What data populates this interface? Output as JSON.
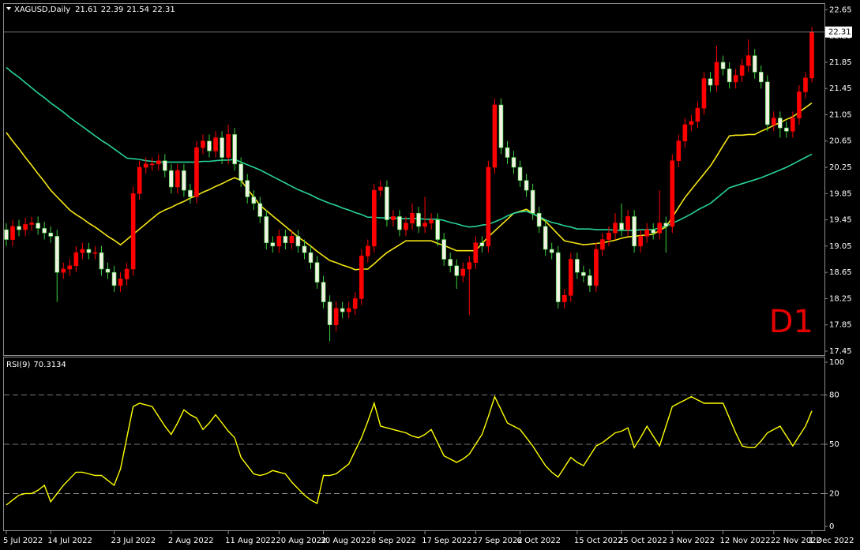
{
  "chart_data": [
    {
      "type": "candlestick",
      "title": "XAGUSD,Daily",
      "annotation": "D1",
      "categories": [
        "5 Jul 2022",
        null,
        null,
        null,
        null,
        null,
        null,
        "14 Jul 2022",
        null,
        null,
        null,
        null,
        null,
        null,
        null,
        null,
        null,
        "23 Jul 2022",
        null,
        null,
        null,
        null,
        null,
        null,
        null,
        null,
        "2 Aug 2022",
        null,
        null,
        null,
        null,
        null,
        null,
        null,
        null,
        "11 Aug 2022",
        null,
        null,
        null,
        null,
        null,
        null,
        null,
        "20 Aug 2022",
        null,
        null,
        null,
        null,
        null,
        null,
        "30 Aug 2022",
        null,
        null,
        null,
        null,
        null,
        null,
        null,
        "8 Sep 2022",
        null,
        null,
        null,
        null,
        null,
        null,
        null,
        "17 Sep 2022",
        null,
        null,
        null,
        null,
        null,
        null,
        null,
        "27 Sep 2022",
        null,
        null,
        null,
        null,
        null,
        null,
        "6 Oct 2022",
        null,
        null,
        null,
        null,
        null,
        null,
        null,
        null,
        "15 Oct 2022",
        null,
        null,
        null,
        null,
        null,
        null,
        "25 Oct 2022",
        null,
        null,
        null,
        null,
        null,
        null,
        null,
        "3 Nov 2022",
        null,
        null,
        null,
        null,
        null,
        null,
        null,
        "12 Nov 2022",
        null,
        null,
        null,
        null,
        null,
        null,
        null,
        "22 Nov 2022",
        null,
        null,
        null,
        null,
        null,
        "1 Dec 2022"
      ],
      "open": [
        19.3,
        19.15,
        19.35,
        19.3,
        19.38,
        19.4,
        19.32,
        19.25,
        19.2,
        18.65,
        18.7,
        18.75,
        18.95,
        19.0,
        18.95,
        18.95,
        18.7,
        18.65,
        18.45,
        18.55,
        18.7,
        19.85,
        20.25,
        20.3,
        20.3,
        20.35,
        20.2,
        19.95,
        20.2,
        19.9,
        19.8,
        20.55,
        20.65,
        20.5,
        20.7,
        20.4,
        20.75,
        20.3,
        20.05,
        19.8,
        19.7,
        19.5,
        19.1,
        19.05,
        19.2,
        19.1,
        19.2,
        19.05,
        18.95,
        18.8,
        18.5,
        18.2,
        17.85,
        18.1,
        18.05,
        18.1,
        18.25,
        18.9,
        19.05,
        19.9,
        19.95,
        19.45,
        19.5,
        19.3,
        19.4,
        19.55,
        19.35,
        19.4,
        19.45,
        19.15,
        18.85,
        18.75,
        18.6,
        18.7,
        18.8,
        19.1,
        19.05,
        20.25,
        21.2,
        20.55,
        20.4,
        20.25,
        20.05,
        19.9,
        19.55,
        19.35,
        19.0,
        18.95,
        18.2,
        18.3,
        18.85,
        18.65,
        18.6,
        18.45,
        19.0,
        19.15,
        19.25,
        19.4,
        19.3,
        19.5,
        19.05,
        19.2,
        19.3,
        19.25,
        19.4,
        19.35,
        20.35,
        20.65,
        20.9,
        20.95,
        21.15,
        21.6,
        21.5,
        21.85,
        21.75,
        21.55,
        21.65,
        21.8,
        21.95,
        21.7,
        21.55,
        20.9,
        21.0,
        20.85,
        20.8,
        21.0,
        21.4,
        21.61
      ],
      "high": [
        19.4,
        19.45,
        19.45,
        19.48,
        19.5,
        19.5,
        19.42,
        19.35,
        19.3,
        18.8,
        18.85,
        19.05,
        19.1,
        19.1,
        19.05,
        19.05,
        18.8,
        18.75,
        18.65,
        18.8,
        19.95,
        20.35,
        20.4,
        20.4,
        20.45,
        20.45,
        20.3,
        20.3,
        20.3,
        20.0,
        20.65,
        20.75,
        20.75,
        20.8,
        20.8,
        20.9,
        20.85,
        20.4,
        20.15,
        19.9,
        19.8,
        19.6,
        19.2,
        19.3,
        19.3,
        19.3,
        19.3,
        19.15,
        19.05,
        18.9,
        18.6,
        18.3,
        18.2,
        18.2,
        18.2,
        18.35,
        19.0,
        19.15,
        20.0,
        20.05,
        20.05,
        19.6,
        19.6,
        19.5,
        19.7,
        19.65,
        19.8,
        19.55,
        19.55,
        19.25,
        18.95,
        18.85,
        18.8,
        18.9,
        19.2,
        19.2,
        20.35,
        21.3,
        21.3,
        20.65,
        20.5,
        20.35,
        20.15,
        20.0,
        19.65,
        19.45,
        19.1,
        19.05,
        18.4,
        18.95,
        18.95,
        18.75,
        18.7,
        19.1,
        19.25,
        19.35,
        19.55,
        19.7,
        19.6,
        19.6,
        19.3,
        19.4,
        19.4,
        19.9,
        19.5,
        20.45,
        20.75,
        21.0,
        21.05,
        21.25,
        21.7,
        21.7,
        22.1,
        21.95,
        21.85,
        21.75,
        21.9,
        22.2,
        22.05,
        21.8,
        21.65,
        21.1,
        21.1,
        20.95,
        21.1,
        21.5,
        21.7,
        22.39
      ],
      "low": [
        19.05,
        19.05,
        19.2,
        19.2,
        19.28,
        19.22,
        19.15,
        19.1,
        18.2,
        18.55,
        18.6,
        18.65,
        18.85,
        18.85,
        18.85,
        18.6,
        18.55,
        18.35,
        18.35,
        18.45,
        18.6,
        19.75,
        20.15,
        20.2,
        20.2,
        20.1,
        19.85,
        19.85,
        19.8,
        19.7,
        19.7,
        20.45,
        20.4,
        20.4,
        20.3,
        20.3,
        20.2,
        19.95,
        19.7,
        19.6,
        19.4,
        19.0,
        18.95,
        18.95,
        19.0,
        19.0,
        18.95,
        18.85,
        18.7,
        18.4,
        18.1,
        17.6,
        17.75,
        17.95,
        17.95,
        18.0,
        18.15,
        18.8,
        18.95,
        19.8,
        19.35,
        19.35,
        19.2,
        19.2,
        19.3,
        19.25,
        19.25,
        19.3,
        19.05,
        18.75,
        18.65,
        18.4,
        18.5,
        18.0,
        18.7,
        18.95,
        18.95,
        20.15,
        20.45,
        20.3,
        20.15,
        19.95,
        19.8,
        19.45,
        19.25,
        18.9,
        18.85,
        18.1,
        18.1,
        18.2,
        18.55,
        18.5,
        18.35,
        18.35,
        18.9,
        19.05,
        19.15,
        19.2,
        19.2,
        18.95,
        18.95,
        19.1,
        19.15,
        19.15,
        18.95,
        19.25,
        20.25,
        20.55,
        20.8,
        20.85,
        21.05,
        21.4,
        21.4,
        21.65,
        21.45,
        21.45,
        21.55,
        21.7,
        21.6,
        21.45,
        20.8,
        20.8,
        20.7,
        20.7,
        20.7,
        20.9,
        21.3,
        21.54
      ],
      "close": [
        19.15,
        19.35,
        19.3,
        19.38,
        19.4,
        19.32,
        19.25,
        19.2,
        18.65,
        18.7,
        18.75,
        18.95,
        19.0,
        18.95,
        18.95,
        18.7,
        18.65,
        18.45,
        18.55,
        18.7,
        19.85,
        20.25,
        20.3,
        20.3,
        20.35,
        20.2,
        19.95,
        20.2,
        19.9,
        19.8,
        20.55,
        20.65,
        20.5,
        20.7,
        20.4,
        20.75,
        20.3,
        20.05,
        19.8,
        19.7,
        19.5,
        19.1,
        19.05,
        19.2,
        19.1,
        19.2,
        19.05,
        18.95,
        18.8,
        18.5,
        18.2,
        17.85,
        18.1,
        18.05,
        18.1,
        18.25,
        18.9,
        19.05,
        19.9,
        19.95,
        19.45,
        19.5,
        19.3,
        19.4,
        19.55,
        19.35,
        19.4,
        19.45,
        19.15,
        18.85,
        18.75,
        18.6,
        18.7,
        18.8,
        19.1,
        19.05,
        20.25,
        21.2,
        20.55,
        20.4,
        20.25,
        20.05,
        19.9,
        19.55,
        19.35,
        19.0,
        18.95,
        18.2,
        18.3,
        18.85,
        18.65,
        18.6,
        18.45,
        19.0,
        19.15,
        19.25,
        19.4,
        19.3,
        19.5,
        19.05,
        19.2,
        19.3,
        19.25,
        19.4,
        19.35,
        20.35,
        20.65,
        20.9,
        20.95,
        21.15,
        21.6,
        21.5,
        21.85,
        21.75,
        21.55,
        21.65,
        21.8,
        21.95,
        21.7,
        21.55,
        20.9,
        21.0,
        20.85,
        20.8,
        21.0,
        21.4,
        21.61,
        22.31
      ],
      "up_color": "#ff0000",
      "down_color": "#f2f2e4",
      "down_wick_color": "#3cd23c",
      "lines": [
        {
          "color": "#f5e614",
          "values": [
            20.78,
            20.65,
            20.53,
            20.4,
            20.28,
            20.15,
            20.03,
            19.9,
            19.8,
            19.7,
            19.6,
            19.53,
            19.47,
            19.4,
            19.34,
            19.27,
            19.2,
            19.14,
            19.07,
            19.15,
            19.23,
            19.31,
            19.39,
            19.47,
            19.55,
            19.6,
            19.64,
            19.69,
            19.73,
            19.78,
            19.82,
            19.87,
            19.91,
            19.96,
            20.0,
            20.05,
            20.09,
            20.05,
            19.92,
            19.8,
            19.67,
            19.59,
            19.51,
            19.43,
            19.35,
            19.27,
            19.19,
            19.12,
            19.05,
            18.97,
            18.9,
            18.83,
            18.8,
            18.76,
            18.73,
            18.69,
            18.7,
            18.7,
            18.78,
            18.87,
            18.95,
            19.01,
            19.07,
            19.13,
            19.13,
            19.13,
            19.13,
            19.13,
            19.09,
            19.06,
            19.02,
            18.98,
            18.98,
            18.98,
            18.98,
            19.09,
            19.19,
            19.28,
            19.37,
            19.46,
            19.55,
            19.58,
            19.61,
            19.55,
            19.49,
            19.43,
            19.33,
            19.23,
            19.13,
            19.11,
            19.09,
            19.07,
            19.08,
            19.09,
            19.1,
            19.12,
            19.14,
            19.17,
            19.19,
            19.2,
            19.21,
            19.22,
            19.23,
            19.29,
            19.34,
            19.49,
            19.64,
            19.79,
            19.91,
            20.03,
            20.15,
            20.27,
            20.42,
            20.58,
            20.73,
            20.74,
            20.74,
            20.75,
            20.75,
            20.8,
            20.84,
            20.89,
            20.93,
            20.98,
            21.02,
            21.09,
            21.16,
            21.23
          ]
        },
        {
          "color": "#28d29b",
          "values": [
            21.77,
            21.69,
            21.62,
            21.54,
            21.46,
            21.38,
            21.31,
            21.23,
            21.16,
            21.09,
            21.01,
            20.94,
            20.87,
            20.8,
            20.73,
            20.66,
            20.6,
            20.53,
            20.46,
            20.39,
            20.38,
            20.37,
            20.35,
            20.34,
            20.33,
            20.33,
            20.33,
            20.33,
            20.33,
            20.33,
            20.33,
            20.34,
            20.34,
            20.35,
            20.36,
            20.36,
            20.37,
            20.33,
            20.29,
            20.25,
            20.21,
            20.16,
            20.11,
            20.06,
            20.01,
            19.96,
            19.91,
            19.87,
            19.83,
            19.78,
            19.74,
            19.7,
            19.67,
            19.63,
            19.6,
            19.56,
            19.53,
            19.49,
            19.49,
            19.48,
            19.48,
            19.48,
            19.47,
            19.47,
            19.47,
            19.47,
            19.46,
            19.46,
            19.46,
            19.44,
            19.41,
            19.39,
            19.36,
            19.34,
            19.35,
            19.37,
            19.38,
            19.42,
            19.46,
            19.51,
            19.55,
            19.57,
            19.58,
            19.54,
            19.5,
            19.45,
            19.41,
            19.39,
            19.36,
            19.34,
            19.31,
            19.31,
            19.31,
            19.3,
            19.3,
            19.3,
            19.29,
            19.29,
            19.29,
            19.29,
            19.3,
            19.3,
            19.3,
            19.33,
            19.35,
            19.4,
            19.44,
            19.49,
            19.54,
            19.6,
            19.65,
            19.7,
            19.78,
            19.86,
            19.94,
            19.97,
            20.0,
            20.03,
            20.06,
            20.09,
            20.13,
            20.17,
            20.21,
            20.25,
            20.3,
            20.35,
            20.4,
            20.45
          ]
        }
      ],
      "ylim": [
        17.39,
        22.75
      ],
      "yticks": [
        22.65,
        22.25,
        21.85,
        21.45,
        21.05,
        20.65,
        20.25,
        19.85,
        19.45,
        19.05,
        18.65,
        18.25,
        17.85,
        17.45
      ]
    },
    {
      "type": "line",
      "title": "RSI(9)",
      "series": [
        {
          "color": "#ffff00",
          "values": [
            13,
            16,
            19,
            20,
            20,
            22,
            25,
            15,
            20,
            25,
            29,
            33,
            33,
            32,
            31,
            31,
            28,
            25,
            35,
            54,
            73,
            75,
            74,
            73,
            67,
            61,
            56,
            63,
            71,
            68,
            66,
            59,
            63,
            68,
            63,
            58,
            54,
            42,
            37,
            32,
            31,
            32,
            34,
            33,
            32,
            27,
            23,
            19,
            16,
            14,
            31,
            31,
            32,
            35,
            38,
            46,
            54,
            64,
            75,
            61,
            60,
            59,
            58,
            57,
            55,
            54,
            56,
            59,
            51,
            43,
            41,
            39,
            41,
            44,
            50,
            56,
            67,
            79,
            71,
            63,
            61,
            59,
            54,
            49,
            43,
            37,
            33,
            30,
            36,
            42,
            39,
            37,
            43,
            49,
            51,
            54,
            57,
            58,
            60,
            48,
            54,
            61,
            55,
            49,
            61,
            73,
            75,
            77,
            79,
            77,
            75,
            75,
            75,
            75,
            66,
            57,
            49,
            48,
            48,
            52,
            57,
            59,
            61,
            55,
            49,
            55,
            61,
            70.3134
          ]
        }
      ],
      "ylim": [
        -2.4,
        102.9
      ],
      "yticks": [
        100,
        80,
        50,
        20,
        0
      ],
      "levels": [
        80,
        50,
        20
      ]
    }
  ]
}
